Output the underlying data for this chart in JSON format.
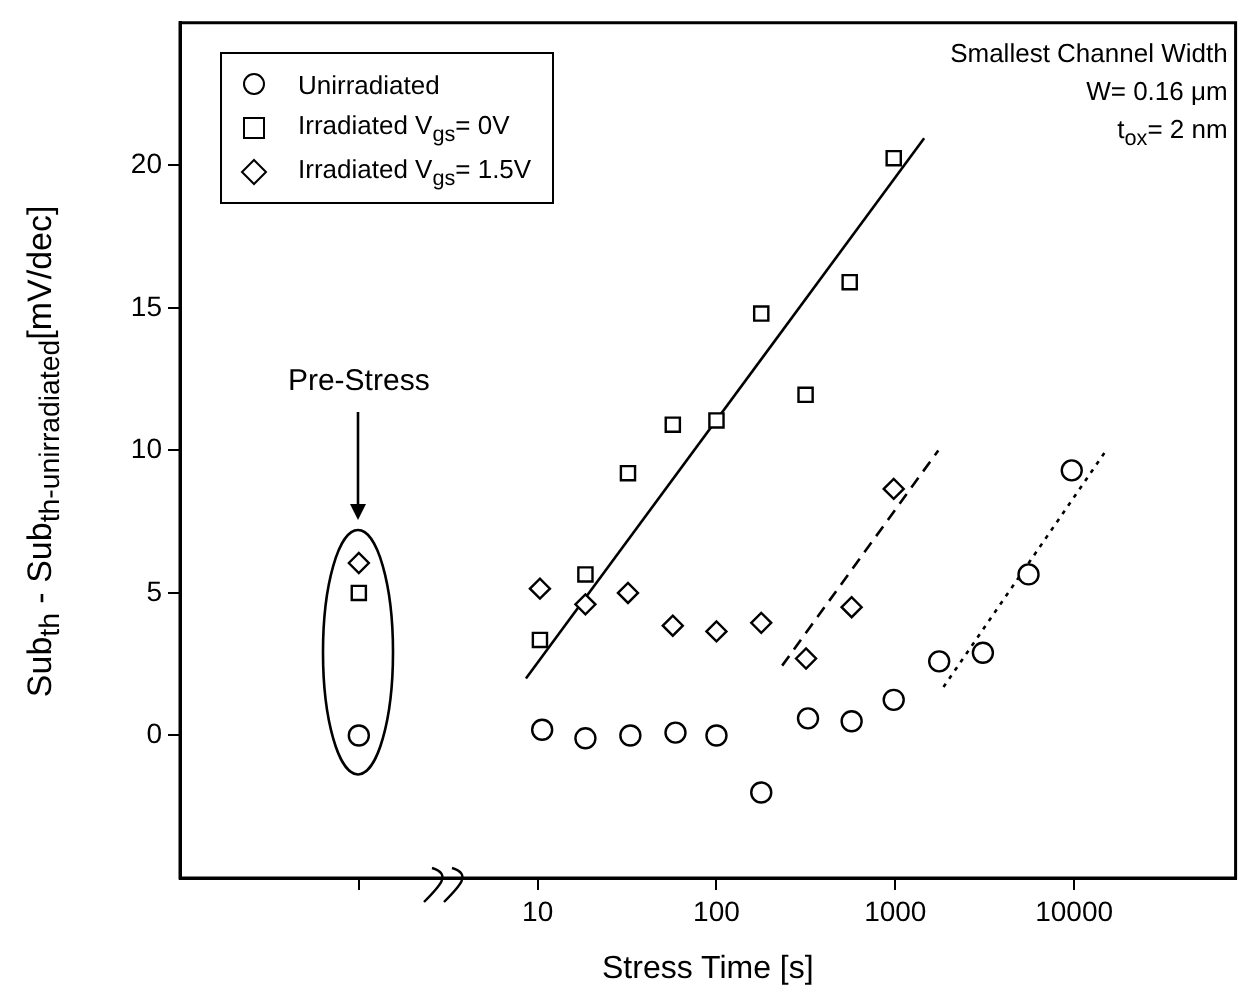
{
  "chart_data": {
    "type": "scatter",
    "xlabel": "Stress Time [s]",
    "ylabel": "Sub$_{th}$ - Sub$_{th-unirradiated}$[mV/dec]",
    "log": "x",
    "xlim": [
      0.1,
      80000
    ],
    "ylim": [
      -5,
      25
    ],
    "xticks": [
      {
        "value": 1,
        "label": null
      },
      10,
      100,
      1000,
      10000
    ],
    "yticks": [
      0,
      5,
      10,
      15,
      20
    ],
    "grid": false,
    "legend": "top left",
    "annotations": [
      "Pre-Stress",
      "Smallest Channel Width",
      "W= 0.16 μm",
      "t$_{ox}$= 2 nm"
    ],
    "series": [
      {
        "name": "Unirradiated",
        "marker": "circle",
        "color": "#000000",
        "x": [
          1,
          10.6,
          18.5,
          33,
          59,
          100,
          178,
          325,
          570,
          980,
          1760,
          3090,
          5560,
          9700
        ],
        "values": [
          0,
          0.2,
          -0.1,
          0,
          0.1,
          0,
          -2,
          0.6,
          0.5,
          1.25,
          2.6,
          2.9,
          5.65,
          9.3
        ]
      },
      {
        "name": "Irradiated V$_{gs}$= 0V",
        "marker": "square",
        "color": "#000000",
        "x": [
          1,
          10.3,
          18.5,
          32,
          57,
          100,
          178,
          315,
          556,
          980
        ],
        "values": [
          5,
          3.35,
          5.65,
          9.2,
          10.9,
          11.05,
          14.8,
          11.95,
          15.9,
          20.25
        ]
      },
      {
        "name": "Irradiated V$_{gs}$= 1.5V",
        "marker": "diamond",
        "color": "#000000",
        "x": [
          1,
          10.3,
          18.5,
          32,
          57,
          100,
          178,
          317,
          570,
          980
        ],
        "values": [
          6.05,
          5.15,
          4.6,
          5,
          3.85,
          3.65,
          3.95,
          2.7,
          4.5,
          8.65
        ]
      },
      {
        "type": "line",
        "marker": "none",
        "line_style": "solid",
        "color": "#000000",
        "x": [
          8.6,
          1450
        ],
        "values": [
          2,
          20.95
        ]
      },
      {
        "type": "line",
        "marker": "none",
        "line_style": "dashed",
        "color": "#000000",
        "x": [
          233,
          1740
        ],
        "values": [
          2.45,
          10
        ]
      },
      {
        "type": "line",
        "marker": "none",
        "line_style": "dotted",
        "color": "#000000",
        "x": [
          1860,
          15100
        ],
        "values": [
          1.7,
          10
        ]
      }
    ]
  }
}
